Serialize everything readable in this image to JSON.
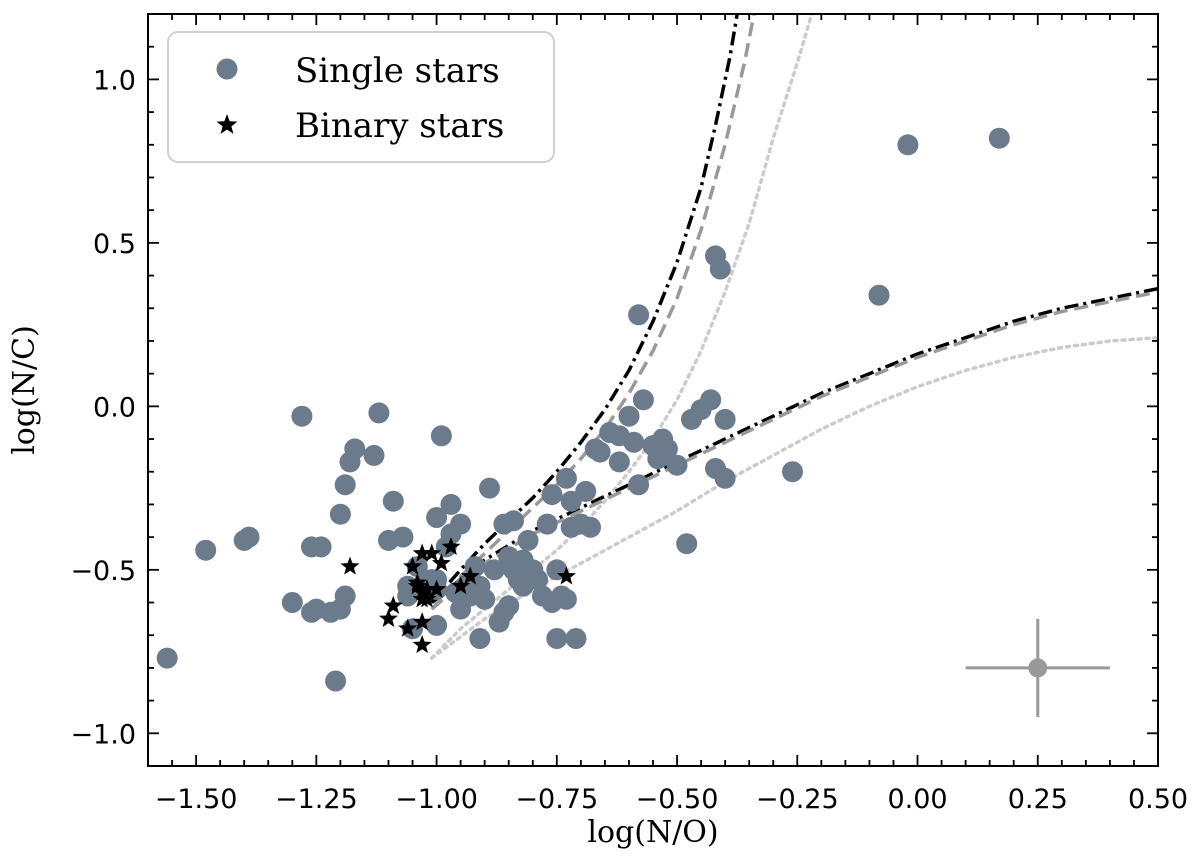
{
  "chart_data": {
    "type": "scatter",
    "xlabel": "log(N/O)",
    "ylabel": "log(N/C)",
    "xlim": [
      -1.6,
      0.5
    ],
    "ylim": [
      -1.1,
      1.2
    ],
    "x_ticks": [
      -1.5,
      -1.25,
      -1.0,
      -0.75,
      -0.5,
      -0.25,
      0.0,
      0.25,
      0.5
    ],
    "x_tick_labels": [
      "−1.50",
      "−1.25",
      "−1.00",
      "−0.75",
      "−0.50",
      "−0.25",
      "0.00",
      "0.25",
      "0.50"
    ],
    "y_ticks": [
      -1.0,
      -0.5,
      0.0,
      0.5,
      1.0
    ],
    "y_tick_labels": [
      "−1.0",
      "−0.5",
      "0.0",
      "0.5",
      "1.0"
    ],
    "legend": {
      "location": "upper-left",
      "entries": [
        {
          "label": "Single stars",
          "marker": "circle",
          "color": "#6b7b8c"
        },
        {
          "label": "Binary stars",
          "marker": "star",
          "color": "#000000"
        }
      ]
    },
    "series": [
      {
        "name": "Single stars",
        "marker": "circle",
        "color": "#6b7b8c",
        "points": [
          [
            -1.56,
            -0.77
          ],
          [
            -1.48,
            -0.44
          ],
          [
            -1.4,
            -0.41
          ],
          [
            -1.39,
            -0.4
          ],
          [
            -1.3,
            -0.6
          ],
          [
            -1.28,
            -0.03
          ],
          [
            -1.26,
            -0.43
          ],
          [
            -1.26,
            -0.63
          ],
          [
            -1.25,
            -0.62
          ],
          [
            -1.24,
            -0.43
          ],
          [
            -1.22,
            -0.63
          ],
          [
            -1.21,
            -0.84
          ],
          [
            -1.2,
            -0.62
          ],
          [
            -1.2,
            -0.33
          ],
          [
            -1.19,
            -0.24
          ],
          [
            -1.19,
            -0.58
          ],
          [
            -1.18,
            -0.17
          ],
          [
            -1.17,
            -0.13
          ],
          [
            -1.13,
            -0.15
          ],
          [
            -1.12,
            -0.02
          ],
          [
            -1.1,
            -0.41
          ],
          [
            -1.09,
            -0.29
          ],
          [
            -1.07,
            -0.4
          ],
          [
            -1.06,
            -0.55
          ],
          [
            -1.06,
            -0.58
          ],
          [
            -1.05,
            -0.68
          ],
          [
            -1.04,
            -0.49
          ],
          [
            -1.03,
            -0.55
          ],
          [
            -1.02,
            -0.56
          ],
          [
            -1.01,
            -0.53
          ],
          [
            -1.0,
            -0.53
          ],
          [
            -1.0,
            -0.56
          ],
          [
            -1.0,
            -0.67
          ],
          [
            -1.0,
            -0.34
          ],
          [
            -0.99,
            -0.09
          ],
          [
            -0.98,
            -0.43
          ],
          [
            -0.97,
            -0.3
          ],
          [
            -0.97,
            -0.39
          ],
          [
            -0.96,
            -0.57
          ],
          [
            -0.95,
            -0.36
          ],
          [
            -0.95,
            -0.62
          ],
          [
            -0.94,
            -0.55
          ],
          [
            -0.93,
            -0.58
          ],
          [
            -0.92,
            -0.49
          ],
          [
            -0.91,
            -0.55
          ],
          [
            -0.91,
            -0.71
          ],
          [
            -0.9,
            -0.59
          ],
          [
            -0.89,
            -0.25
          ],
          [
            -0.88,
            -0.5
          ],
          [
            -0.87,
            -0.66
          ],
          [
            -0.86,
            -0.63
          ],
          [
            -0.86,
            -0.36
          ],
          [
            -0.85,
            -0.61
          ],
          [
            -0.85,
            -0.46
          ],
          [
            -0.84,
            -0.35
          ],
          [
            -0.84,
            -0.5
          ],
          [
            -0.83,
            -0.53
          ],
          [
            -0.82,
            -0.47
          ],
          [
            -0.82,
            -0.55
          ],
          [
            -0.81,
            -0.41
          ],
          [
            -0.8,
            -0.5
          ],
          [
            -0.79,
            -0.53
          ],
          [
            -0.78,
            -0.58
          ],
          [
            -0.77,
            -0.36
          ],
          [
            -0.76,
            -0.27
          ],
          [
            -0.76,
            -0.6
          ],
          [
            -0.75,
            -0.5
          ],
          [
            -0.75,
            -0.71
          ],
          [
            -0.74,
            -0.58
          ],
          [
            -0.73,
            -0.59
          ],
          [
            -0.73,
            -0.22
          ],
          [
            -0.72,
            -0.29
          ],
          [
            -0.72,
            -0.37
          ],
          [
            -0.71,
            -0.71
          ],
          [
            -0.7,
            -0.36
          ],
          [
            -0.69,
            -0.26
          ],
          [
            -0.68,
            -0.37
          ],
          [
            -0.67,
            -0.13
          ],
          [
            -0.66,
            -0.14
          ],
          [
            -0.64,
            -0.08
          ],
          [
            -0.62,
            -0.17
          ],
          [
            -0.62,
            -0.09
          ],
          [
            -0.6,
            -0.03
          ],
          [
            -0.59,
            -0.11
          ],
          [
            -0.58,
            -0.24
          ],
          [
            -0.58,
            0.28
          ],
          [
            -0.57,
            0.02
          ],
          [
            -0.55,
            -0.12
          ],
          [
            -0.54,
            -0.16
          ],
          [
            -0.53,
            -0.1
          ],
          [
            -0.52,
            -0.13
          ],
          [
            -0.5,
            -0.18
          ],
          [
            -0.48,
            -0.42
          ],
          [
            -0.47,
            -0.04
          ],
          [
            -0.45,
            -0.01
          ],
          [
            -0.43,
            0.02
          ],
          [
            -0.42,
            -0.19
          ],
          [
            -0.42,
            0.46
          ],
          [
            -0.41,
            0.42
          ],
          [
            -0.4,
            -0.04
          ],
          [
            -0.4,
            -0.22
          ],
          [
            -0.26,
            -0.2
          ],
          [
            -0.08,
            0.34
          ],
          [
            -0.02,
            0.8
          ],
          [
            0.17,
            0.82
          ]
        ]
      },
      {
        "name": "Binary stars",
        "marker": "star",
        "color": "#000000",
        "points": [
          [
            -1.18,
            -0.49
          ],
          [
            -1.1,
            -0.65
          ],
          [
            -1.09,
            -0.61
          ],
          [
            -1.06,
            -0.68
          ],
          [
            -1.05,
            -0.49
          ],
          [
            -1.04,
            -0.54
          ],
          [
            -1.04,
            -0.55
          ],
          [
            -1.03,
            -0.57
          ],
          [
            -1.03,
            -0.59
          ],
          [
            -1.03,
            -0.66
          ],
          [
            -1.03,
            -0.73
          ],
          [
            -1.03,
            -0.45
          ],
          [
            -1.02,
            -0.56
          ],
          [
            -1.02,
            -0.59
          ],
          [
            -1.01,
            -0.45
          ],
          [
            -1.0,
            -0.56
          ],
          [
            -0.99,
            -0.48
          ],
          [
            -0.97,
            -0.43
          ],
          [
            -0.95,
            -0.55
          ],
          [
            -0.93,
            -0.52
          ],
          [
            -0.73,
            -0.52
          ]
        ]
      }
    ],
    "model_curves": [
      {
        "name": "track-1",
        "style": "dash-dot",
        "color": "#000000",
        "points": [
          [
            -1.01,
            -0.6
          ],
          [
            -0.95,
            -0.5
          ],
          [
            -0.9,
            -0.42
          ],
          [
            -0.85,
            -0.35
          ],
          [
            -0.8,
            -0.28
          ],
          [
            -0.75,
            -0.2
          ],
          [
            -0.7,
            -0.11
          ],
          [
            -0.65,
            -0.01
          ],
          [
            -0.6,
            0.11
          ],
          [
            -0.55,
            0.26
          ],
          [
            -0.5,
            0.44
          ],
          [
            -0.45,
            0.67
          ],
          [
            -0.42,
            0.86
          ],
          [
            -0.39,
            1.07
          ],
          [
            -0.375,
            1.2
          ]
        ]
      },
      {
        "name": "track-2",
        "style": "dashed",
        "color": "#999999",
        "points": [
          [
            -1.01,
            -0.62
          ],
          [
            -0.95,
            -0.52
          ],
          [
            -0.9,
            -0.45
          ],
          [
            -0.85,
            -0.38
          ],
          [
            -0.8,
            -0.31
          ],
          [
            -0.75,
            -0.24
          ],
          [
            -0.7,
            -0.16
          ],
          [
            -0.65,
            -0.07
          ],
          [
            -0.6,
            0.04
          ],
          [
            -0.55,
            0.17
          ],
          [
            -0.5,
            0.33
          ],
          [
            -0.45,
            0.54
          ],
          [
            -0.4,
            0.8
          ],
          [
            -0.36,
            1.05
          ],
          [
            -0.34,
            1.2
          ]
        ]
      },
      {
        "name": "track-3",
        "style": "dotted",
        "color": "#cccccc",
        "points": [
          [
            -1.01,
            -0.77
          ],
          [
            -0.95,
            -0.68
          ],
          [
            -0.9,
            -0.62
          ],
          [
            -0.85,
            -0.56
          ],
          [
            -0.8,
            -0.5
          ],
          [
            -0.75,
            -0.44
          ],
          [
            -0.7,
            -0.37
          ],
          [
            -0.65,
            -0.29
          ],
          [
            -0.6,
            -0.2
          ],
          [
            -0.55,
            -0.1
          ],
          [
            -0.5,
            0.02
          ],
          [
            -0.45,
            0.17
          ],
          [
            -0.4,
            0.35
          ],
          [
            -0.35,
            0.56
          ],
          [
            -0.3,
            0.82
          ],
          [
            -0.25,
            1.05
          ],
          [
            -0.22,
            1.2
          ]
        ]
      },
      {
        "name": "track-4",
        "style": "dash-dot",
        "color": "#000000",
        "points": [
          [
            -1.01,
            -0.6
          ],
          [
            -0.9,
            -0.47
          ],
          [
            -0.8,
            -0.38
          ],
          [
            -0.7,
            -0.31
          ],
          [
            -0.6,
            -0.24
          ],
          [
            -0.5,
            -0.17
          ],
          [
            -0.4,
            -0.1
          ],
          [
            -0.3,
            -0.03
          ],
          [
            -0.2,
            0.04
          ],
          [
            -0.1,
            0.1
          ],
          [
            0.0,
            0.16
          ],
          [
            0.1,
            0.21
          ],
          [
            0.2,
            0.26
          ],
          [
            0.3,
            0.3
          ],
          [
            0.4,
            0.33
          ],
          [
            0.5,
            0.36
          ]
        ]
      },
      {
        "name": "track-5",
        "style": "dashed",
        "color": "#999999",
        "points": [
          [
            -1.01,
            -0.62
          ],
          [
            -0.9,
            -0.48
          ],
          [
            -0.8,
            -0.39
          ],
          [
            -0.7,
            -0.32
          ],
          [
            -0.6,
            -0.25
          ],
          [
            -0.5,
            -0.18
          ],
          [
            -0.4,
            -0.11
          ],
          [
            -0.3,
            -0.04
          ],
          [
            -0.2,
            0.03
          ],
          [
            -0.1,
            0.09
          ],
          [
            0.0,
            0.15
          ],
          [
            0.1,
            0.2
          ],
          [
            0.2,
            0.25
          ],
          [
            0.3,
            0.29
          ],
          [
            0.4,
            0.32
          ],
          [
            0.5,
            0.35
          ]
        ]
      },
      {
        "name": "track-6",
        "style": "dotted",
        "color": "#cccccc",
        "points": [
          [
            -1.01,
            -0.77
          ],
          [
            -0.9,
            -0.65
          ],
          [
            -0.8,
            -0.56
          ],
          [
            -0.7,
            -0.48
          ],
          [
            -0.6,
            -0.4
          ],
          [
            -0.5,
            -0.32
          ],
          [
            -0.4,
            -0.23
          ],
          [
            -0.3,
            -0.15
          ],
          [
            -0.2,
            -0.07
          ],
          [
            -0.1,
            0.0
          ],
          [
            0.0,
            0.06
          ],
          [
            0.1,
            0.11
          ],
          [
            0.2,
            0.15
          ],
          [
            0.3,
            0.18
          ],
          [
            0.4,
            0.2
          ],
          [
            0.5,
            0.21
          ]
        ]
      }
    ],
    "error_bar": {
      "x": 0.25,
      "y": -0.8,
      "xerr": 0.15,
      "yerr": 0.15,
      "color": "#999999"
    }
  }
}
